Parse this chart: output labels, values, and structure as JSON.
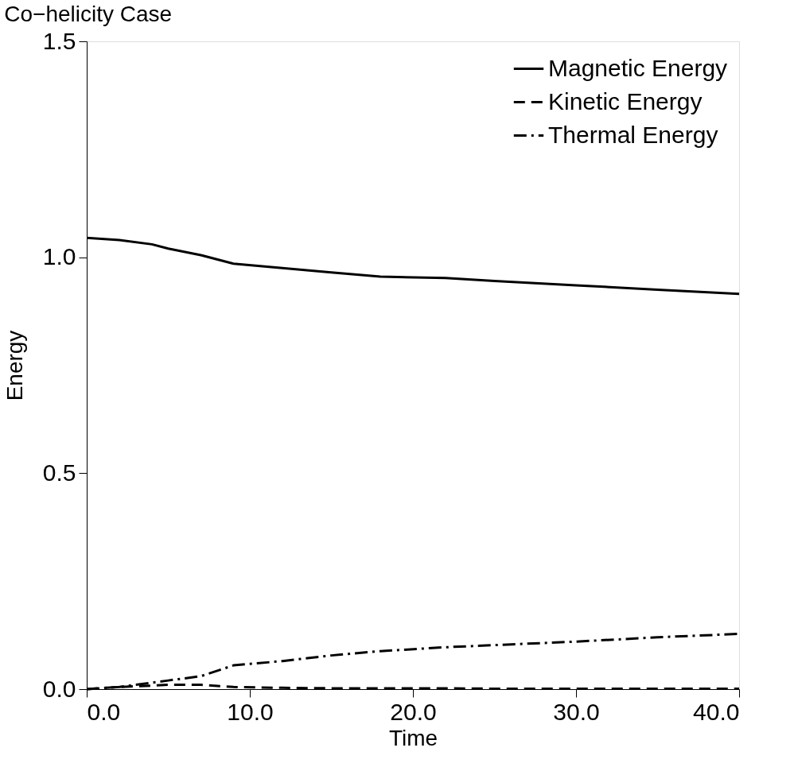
{
  "chart_data": {
    "type": "line",
    "title": "Co−helicity Case",
    "xlabel": "Time",
    "ylabel": "Energy",
    "xlim": [
      0,
      40
    ],
    "xticks": [
      {
        "value": 0,
        "label": "0.0"
      },
      {
        "value": 10,
        "label": "10.0"
      },
      {
        "value": 20,
        "label": "20.0"
      },
      {
        "value": 30,
        "label": "30.0"
      },
      {
        "value": 40,
        "label": "40.0"
      }
    ],
    "ylim": [
      0,
      1.5
    ],
    "yticks": [
      {
        "value": 0,
        "label": "0.0"
      },
      {
        "value": 0.5,
        "label": "0.5"
      },
      {
        "value": 1,
        "label": "1.0"
      },
      {
        "value": 1.5,
        "label": "1.5"
      }
    ],
    "x": [
      0,
      2,
      4,
      5,
      7,
      9,
      12,
      15,
      18,
      22,
      25,
      30,
      35,
      40
    ],
    "series": [
      {
        "name": "Magnetic Energy",
        "color": "#000000",
        "line_style": "solid",
        "values": [
          1.045,
          1.04,
          1.03,
          1.02,
          1.005,
          0.985,
          0.975,
          0.965,
          0.955,
          0.952,
          0.945,
          0.935,
          0.925,
          0.915
        ]
      },
      {
        "name": "Kinetic Energy",
        "color": "#000000",
        "line_style": "dashed",
        "values": [
          0,
          0.005,
          0.008,
          0.01,
          0.01,
          0.005,
          0.003,
          0.002,
          0.002,
          0.002,
          0.001,
          0.001,
          0.001,
          0.001
        ]
      },
      {
        "name": "Thermal Energy",
        "color": "#000000",
        "line_style": "dashdot",
        "values": [
          0,
          0.005,
          0.015,
          0.02,
          0.03,
          0.055,
          0.065,
          0.078,
          0.088,
          0.097,
          0.102,
          0.11,
          0.12,
          0.128
        ]
      }
    ],
    "legend": "top right",
    "grid": false,
    "marker": "none"
  }
}
